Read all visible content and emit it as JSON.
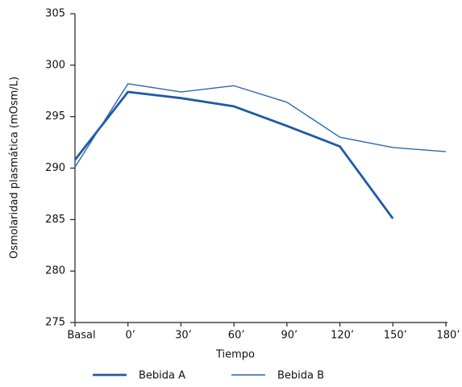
{
  "chart_data": {
    "type": "line",
    "x_label": "Tiempo",
    "y_label": "Osmolaridad plasmática (mOsm/L)",
    "categories": [
      "Basal",
      "0’",
      "30’",
      "60’",
      "90’",
      "120’",
      "150’",
      "180’"
    ],
    "series": [
      {
        "name": "Bebida A",
        "color": "#1f5aa6",
        "values": [
          290.8,
          297.4,
          296.8,
          296,
          294.1,
          292.1,
          285.1,
          null
        ]
      },
      {
        "name": "Bebida B",
        "color": "#2a67b3",
        "values": [
          290.1,
          298.2,
          297.4,
          298,
          296.4,
          293,
          292,
          291.6
        ]
      }
    ],
    "ylim": [
      275,
      305
    ],
    "yticks": [
      275,
      280,
      285,
      290,
      295,
      300,
      305
    ]
  }
}
